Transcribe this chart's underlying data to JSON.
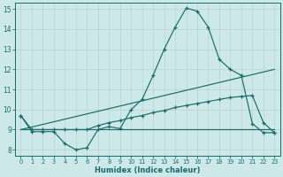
{
  "line1_x": [
    0,
    1,
    2,
    3,
    4,
    5,
    6,
    7,
    8,
    9,
    10,
    11,
    12,
    13,
    14,
    15,
    16,
    17,
    18,
    19,
    20,
    21,
    22,
    23
  ],
  "line1_y": [
    9.7,
    8.9,
    8.9,
    8.9,
    8.3,
    8.0,
    8.1,
    9.0,
    9.15,
    9.05,
    10.0,
    10.5,
    11.7,
    13.0,
    14.1,
    15.05,
    14.9,
    14.1,
    12.5,
    12.0,
    11.7,
    9.3,
    8.85,
    8.85
  ],
  "line2_x": [
    0,
    23
  ],
  "line2_y": [
    9.0,
    9.0
  ],
  "line3_x": [
    0,
    23
  ],
  "line3_y": [
    9.0,
    12.0
  ],
  "line4_x": [
    0,
    1,
    2,
    3,
    4,
    5,
    6,
    7,
    8,
    9,
    10,
    11,
    12,
    13,
    14,
    15,
    16,
    17,
    18,
    19,
    20,
    21,
    22,
    23
  ],
  "line4_y": [
    9.7,
    9.0,
    9.0,
    9.0,
    9.0,
    9.0,
    9.0,
    9.2,
    9.35,
    9.45,
    9.6,
    9.7,
    9.85,
    9.95,
    10.1,
    10.2,
    10.3,
    10.4,
    10.5,
    10.6,
    10.65,
    10.7,
    9.35,
    8.85
  ],
  "bg_color": "#cde8e8",
  "line_color": "#1a6b6b",
  "grid_major_color": "#b8d0d0",
  "grid_minor_color": "#d0e4e4",
  "xlabel": "Humidex (Indice chaleur)",
  "xlim": [
    -0.5,
    23.5
  ],
  "ylim": [
    7.7,
    15.3
  ],
  "yticks": [
    8,
    9,
    10,
    11,
    12,
    13,
    14,
    15
  ],
  "xticks": [
    0,
    1,
    2,
    3,
    4,
    5,
    6,
    7,
    8,
    9,
    10,
    11,
    12,
    13,
    14,
    15,
    16,
    17,
    18,
    19,
    20,
    21,
    22,
    23
  ]
}
